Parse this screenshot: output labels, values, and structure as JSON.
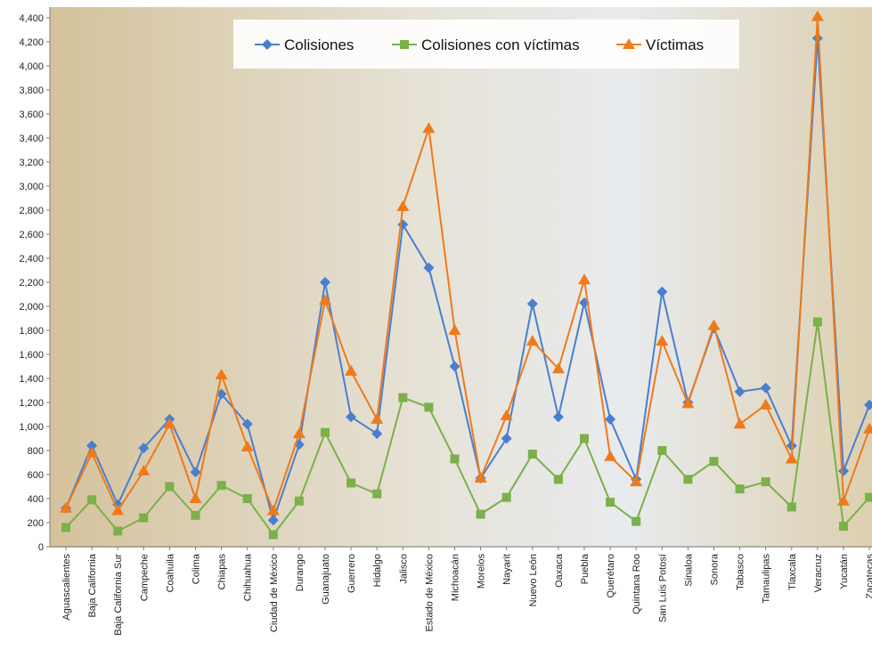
{
  "chart_data": {
    "type": "line",
    "categories": [
      "Aguascalientes",
      "Baja California",
      "Baja California Sur",
      "Campeche",
      "Coahuila",
      "Colima",
      "Chiapas",
      "Chihuahua",
      "Ciudad de México",
      "Durango",
      "Guanajuato",
      "Guerrero",
      "Hidalgo",
      "Jalisco",
      "Estado de México",
      "Michoacán",
      "Morelos",
      "Nayarit",
      "Nuevo León",
      "Oaxaca",
      "Puebla",
      "Querétaro",
      "Quintana Roo",
      "San Luis Potosí",
      "Sinaloa",
      "Sonora",
      "Tabasco",
      "Tamaulipas",
      "Tlaxcala",
      "Veracruz",
      "Yucatán",
      "Zacatecas"
    ],
    "series": [
      {
        "name": "Colisiones",
        "color": "#4a7fcf",
        "marker": "diamond",
        "values": [
          320,
          840,
          350,
          820,
          1060,
          620,
          1270,
          1020,
          220,
          850,
          2200,
          1080,
          940,
          2680,
          2320,
          1500,
          570,
          900,
          2020,
          1080,
          2030,
          1060,
          560,
          2120,
          1200,
          1820,
          1290,
          1320,
          840,
          4230,
          630,
          1180
        ]
      },
      {
        "name": "Colisiones con víctimas",
        "color": "#7bb04a",
        "marker": "square",
        "values": [
          160,
          390,
          130,
          240,
          500,
          260,
          510,
          400,
          100,
          380,
          950,
          530,
          440,
          1240,
          1160,
          730,
          270,
          410,
          770,
          560,
          900,
          370,
          210,
          800,
          560,
          710,
          480,
          540,
          330,
          1870,
          170,
          410
        ]
      },
      {
        "name": "Víctimas",
        "color": "#ef7a1a",
        "marker": "triangle",
        "values": [
          320,
          780,
          300,
          630,
          1020,
          400,
          1430,
          830,
          300,
          940,
          2050,
          1460,
          1060,
          2830,
          3480,
          1800,
          570,
          1090,
          1710,
          1480,
          2220,
          750,
          540,
          1710,
          1190,
          1840,
          1020,
          1180,
          730,
          4410,
          380,
          980
        ]
      }
    ],
    "ylim": [
      0,
      4400
    ],
    "ytick_step": 200,
    "ytick_labels": [
      "0",
      "200",
      "400",
      "600",
      "800",
      "1,000",
      "1,200",
      "1,400",
      "1,600",
      "1,800",
      "2,000",
      "2,200",
      "2,400",
      "2,600",
      "2,800",
      "3,000",
      "3,200",
      "3,400",
      "3,600",
      "3,800",
      "4,000",
      "4,200",
      "4,400"
    ],
    "legend_position": "top",
    "grid": false,
    "background": [
      "#d9c9a6",
      "#e9ecf0"
    ]
  }
}
